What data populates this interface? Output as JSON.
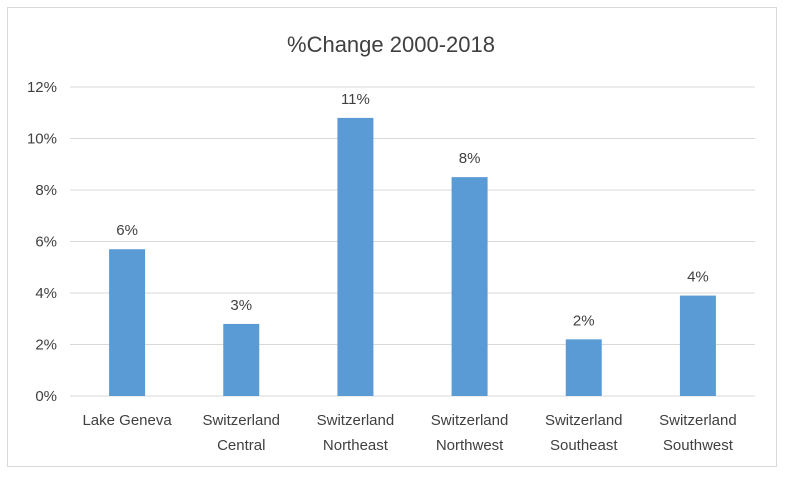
{
  "chart_data": {
    "type": "bar",
    "title": "%Change 2000-2018",
    "categories": [
      [
        "Lake Geneva"
      ],
      [
        "Switzerland",
        "Central"
      ],
      [
        "Switzerland",
        "Northeast"
      ],
      [
        "Switzerland",
        "Northwest"
      ],
      [
        "Switzerland",
        "Southeast"
      ],
      [
        "Switzerland",
        "Southwest"
      ]
    ],
    "values": [
      0.057,
      0.028,
      0.108,
      0.085,
      0.022,
      0.039
    ],
    "data_labels": [
      "6%",
      "3%",
      "11%",
      "8%",
      "2%",
      "4%"
    ],
    "ylim": [
      0,
      0.12
    ],
    "yticks": [
      0,
      0.02,
      0.04,
      0.06,
      0.08,
      0.1,
      0.12
    ],
    "ytick_labels": [
      "0%",
      "2%",
      "4%",
      "6%",
      "8%",
      "10%",
      "12%"
    ],
    "xlabel": "",
    "ylabel": "",
    "grid": true,
    "legend": "none",
    "colors": {
      "bar": "#5b9bd5",
      "grid": "#d9d9d9",
      "text": "#404040"
    }
  }
}
